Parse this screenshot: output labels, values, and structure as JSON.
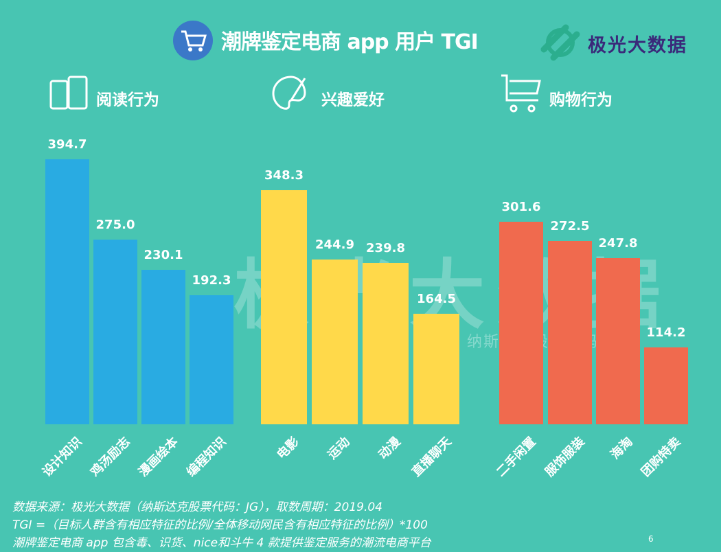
{
  "header": {
    "title": "潮牌鉴定电商 app 用户 TGI",
    "logo": "极光大数据"
  },
  "watermark": {
    "main": "极光大数据",
    "sub": "纳斯达克股票代码：JG"
  },
  "colors": {
    "background": "#48C5B2",
    "blue": "#29ABE2",
    "yellow": "#FFD94A",
    "red": "#F06A4E"
  },
  "chart_data": [
    {
      "type": "bar",
      "title": "阅读行为",
      "icon": "books-icon",
      "color": "#29ABE2",
      "categories": [
        "设计知识",
        "鸡汤励志",
        "漫画绘本",
        "编程知识"
      ],
      "values": [
        394.7,
        275.0,
        230.1,
        192.3
      ]
    },
    {
      "type": "bar",
      "title": "兴趣爱好",
      "icon": "palette-icon",
      "color": "#FFD94A",
      "categories": [
        "电影",
        "运动",
        "动漫",
        "直播聊天"
      ],
      "values": [
        348.3,
        244.9,
        239.8,
        164.5
      ]
    },
    {
      "type": "bar",
      "title": "购物行为",
      "icon": "cart-icon",
      "color": "#F06A4E",
      "categories": [
        "二手闲置",
        "服饰服装",
        "海淘",
        "团购特卖"
      ],
      "values": [
        301.6,
        272.5,
        247.8,
        114.2
      ]
    }
  ],
  "footer": {
    "notes": [
      "数据来源：极光大数据（纳斯达克股票代码：JG），取数周期：2019.04",
      "TGI =（目标人群含有相应特征的比例/全体移动网民含有相应特征的比例）*100",
      "潮牌鉴定电商 app 包含毒、识货、nice和斗牛 4 款提供鉴定服务的潮流电商平台"
    ],
    "page": "6"
  }
}
